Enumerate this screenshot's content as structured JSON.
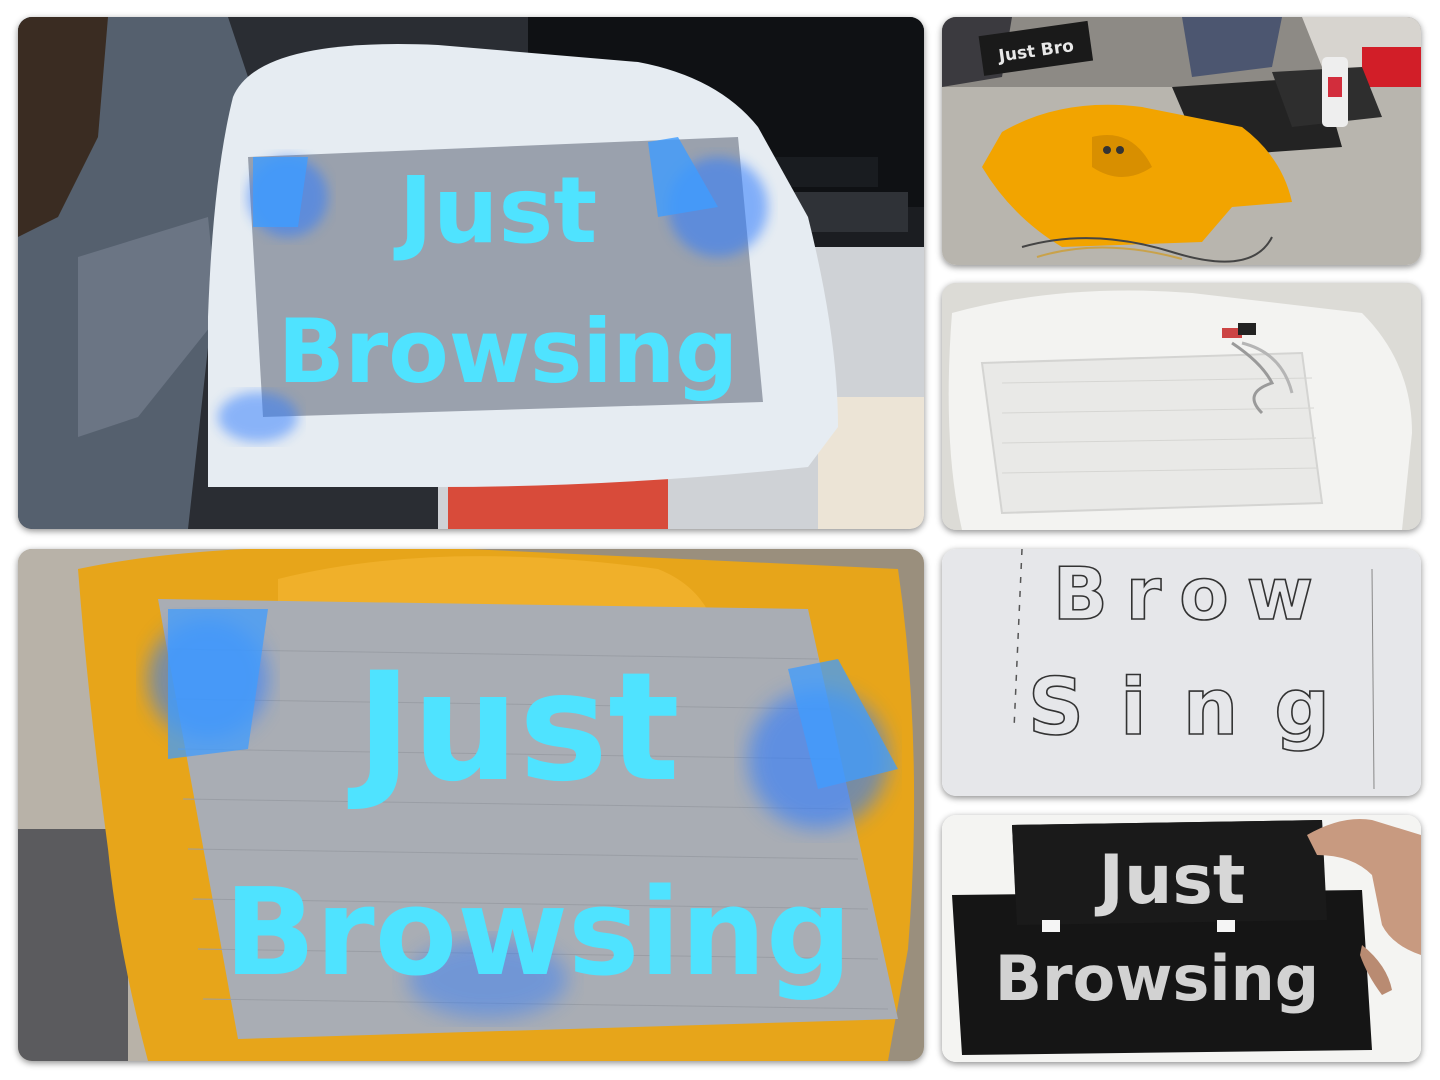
{
  "photos": {
    "white_shirt_lit": {
      "line1": "Just",
      "line2": "Browsing"
    },
    "orange_hoodie_table": {
      "sign_text": "Just Bro"
    },
    "white_shirt_flat": {},
    "sketch": {
      "line1": "Brow",
      "line2": "Sing"
    },
    "stencil": {
      "line1": "Just",
      "line2": "Browsing"
    },
    "orange_hoodie_lit": {
      "line1": "Just",
      "line2": "Browsing"
    }
  },
  "colors": {
    "led_cyan": "#4fe3ff",
    "led_blue": "#2f7bff",
    "hoodie_orange": "#f2a400",
    "stencil_black": "#1a1a1a"
  }
}
